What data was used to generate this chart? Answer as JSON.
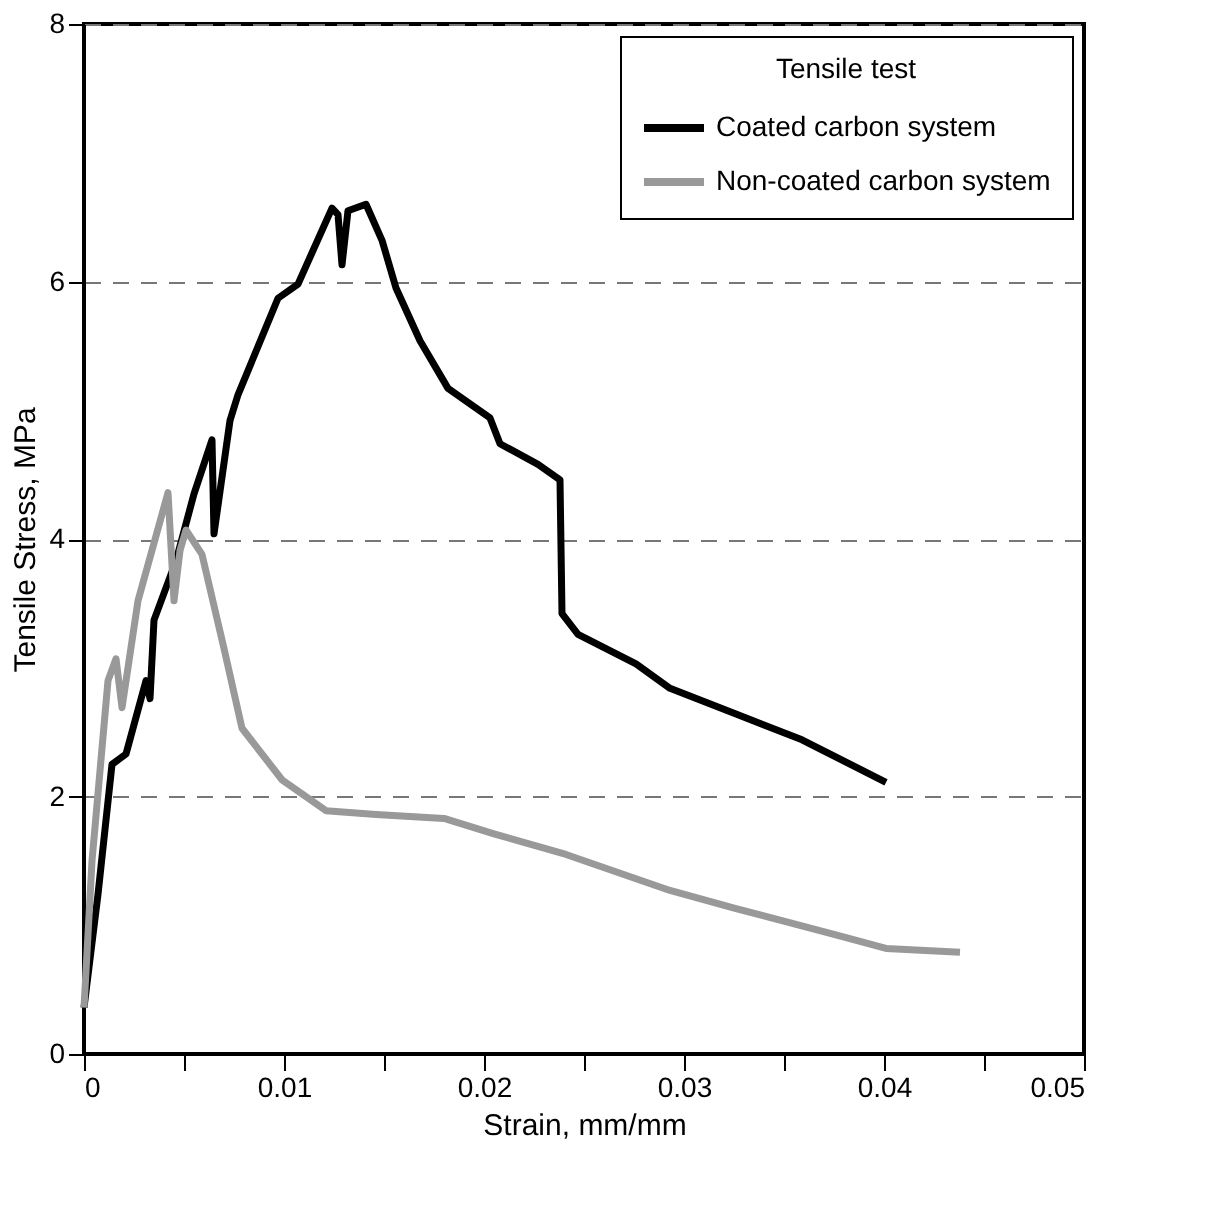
{
  "chart_data": {
    "type": "line",
    "xlabel": "Strain, mm/mm",
    "ylabel": "Tensile Stress, MPa",
    "legend_title": "Tensile test",
    "legend": "top right",
    "grid": "y",
    "line_style": "solid",
    "marker": "none",
    "xlim": [
      0,
      0.05
    ],
    "ylim": [
      0,
      8
    ],
    "xticks": [
      0,
      {
        "value": 0.005,
        "label": null
      },
      0.01,
      {
        "value": 0.015,
        "label": null
      },
      0.02,
      {
        "value": 0.025,
        "label": null
      },
      0.03,
      {
        "value": 0.035,
        "label": null
      },
      0.04,
      {
        "value": 0.045,
        "label": null
      },
      0.05
    ],
    "yticks": [
      0,
      2,
      4,
      6,
      8
    ],
    "series": [
      {
        "name": "Coated carbon system",
        "color": "#000000",
        "x": [
          0,
          0.0007,
          0.0014,
          0.0021,
          0.0031,
          0.0033,
          0.0035,
          0.0046,
          0.0055,
          0.0064,
          0.0065,
          0.0073,
          0.0077,
          0.0097,
          0.0107,
          0.0124,
          0.0127,
          0.0129,
          0.0132,
          0.0141,
          0.0149,
          0.0156,
          0.0168,
          0.0182,
          0.0203,
          0.0208,
          0.0227,
          0.0238,
          0.0239,
          0.0247,
          0.0276,
          0.0293,
          0.0326,
          0.0359,
          0.0401
        ],
        "values": [
          0.36,
          1.24,
          2.25,
          2.33,
          2.9,
          2.76,
          3.37,
          3.83,
          4.35,
          4.77,
          4.04,
          4.92,
          5.12,
          5.87,
          5.98,
          6.57,
          6.52,
          6.13,
          6.55,
          6.6,
          6.32,
          5.95,
          5.54,
          5.17,
          4.94,
          4.74,
          4.58,
          4.46,
          3.42,
          3.26,
          3.03,
          2.84,
          2.64,
          2.44,
          2.11
        ]
      },
      {
        "name": "Non-coated carbon system",
        "color": "#999999",
        "x": [
          0,
          0.0004,
          0.0012,
          0.0016,
          0.0019,
          0.0027,
          0.0042,
          0.0045,
          0.0048,
          0.0051,
          0.0059,
          0.007,
          0.0079,
          0.0099,
          0.0121,
          0.0146,
          0.018,
          0.0205,
          0.0241,
          0.0293,
          0.0326,
          0.0375,
          0.0401,
          0.0438
        ],
        "values": [
          0.36,
          1.5,
          2.9,
          3.07,
          2.69,
          3.52,
          4.36,
          3.52,
          3.91,
          4.07,
          3.88,
          3.15,
          2.53,
          2.13,
          1.89,
          1.86,
          1.83,
          1.71,
          1.55,
          1.27,
          1.13,
          0.93,
          0.82,
          0.79
        ]
      }
    ]
  }
}
